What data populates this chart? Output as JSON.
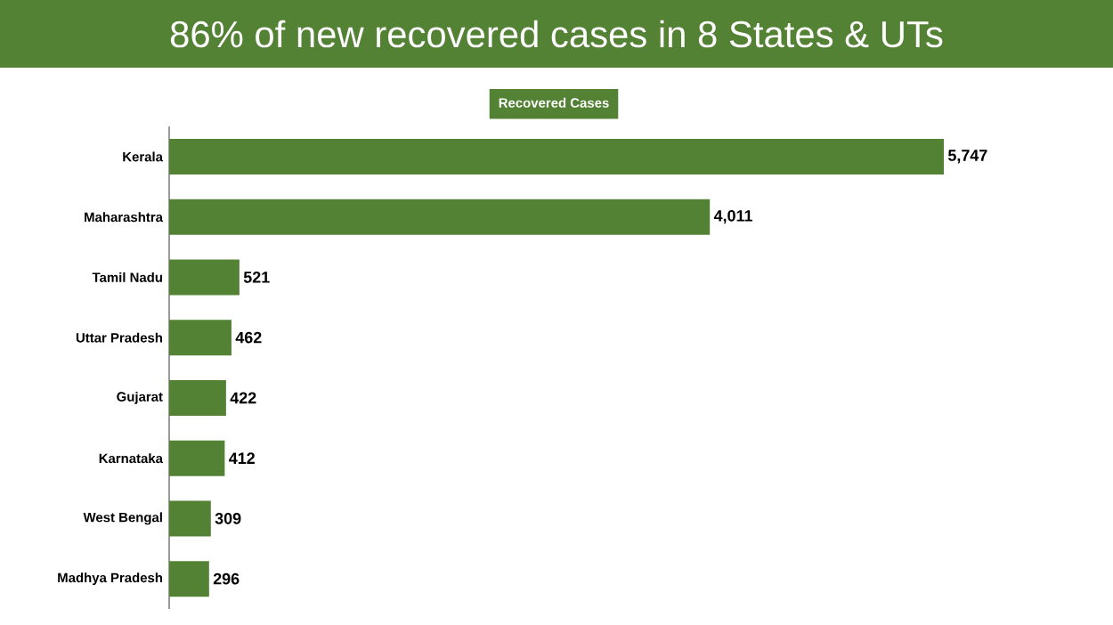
{
  "chart_data": {
    "type": "bar",
    "orientation": "horizontal",
    "title": "86% of new recovered cases in 8 States & UTs",
    "categories": [
      "Kerala",
      "Maharashtra",
      "Tamil Nadu",
      "Uttar Pradesh",
      "Gujarat",
      "Karnataka",
      "West Bengal",
      "Madhya Pradesh"
    ],
    "series": [
      {
        "name": "Recovered Cases",
        "color": "#548235",
        "values": [
          5747,
          4011,
          521,
          462,
          422,
          412,
          309,
          296
        ],
        "value_labels": [
          "5,747",
          "4,011",
          "521",
          "462",
          "422",
          "412",
          "309",
          "296"
        ]
      }
    ],
    "legend": "top"
  }
}
